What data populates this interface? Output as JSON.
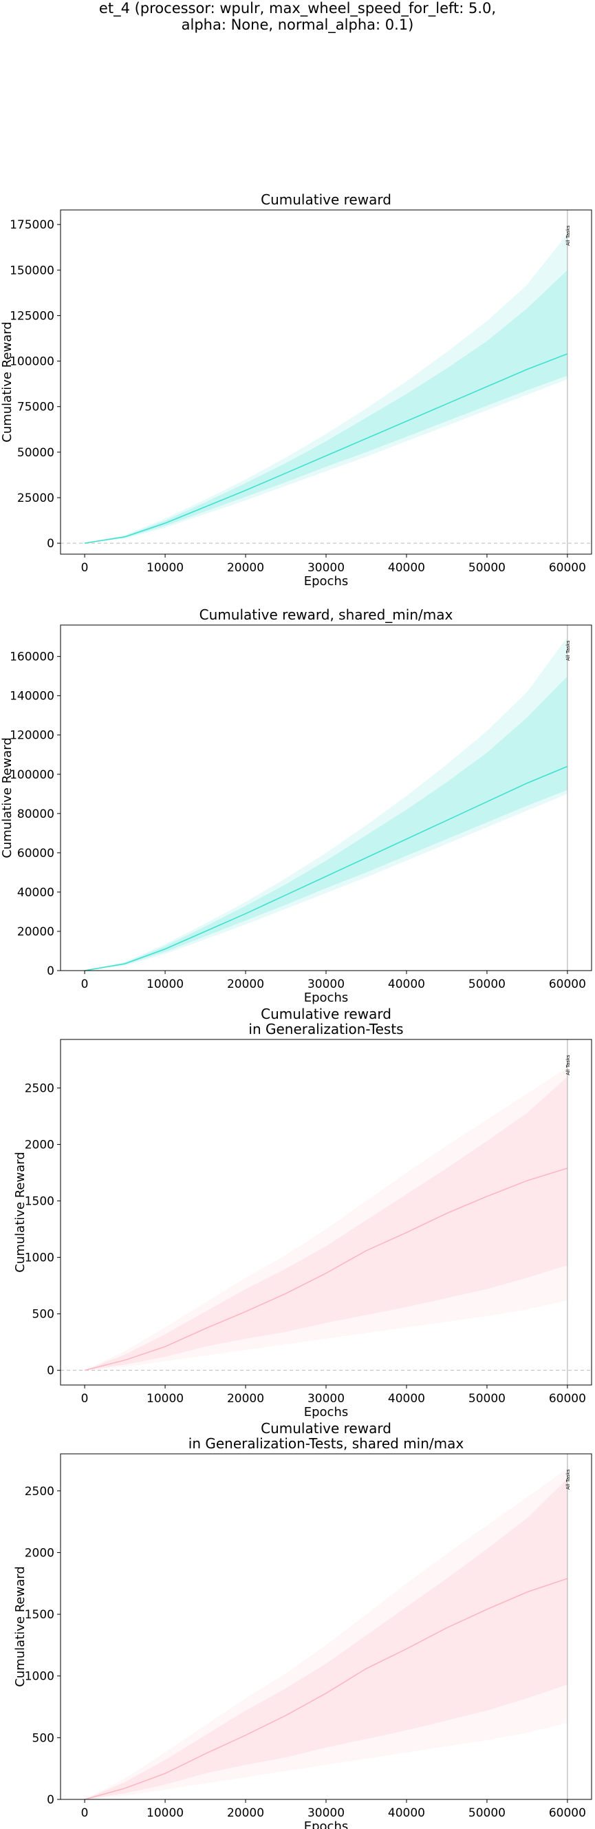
{
  "figure": {
    "suptitle_line1": "et_4 (processor: wpulr, max_wheel_speed_for_left: 5.0,",
    "suptitle_line2": "alpha: None, normal_alpha: 0.1)"
  },
  "chart_data": [
    {
      "type": "line",
      "title": "Cumulative reward",
      "xlabel": "Epochs",
      "ylabel": "Cumulative Reward",
      "xlim": [
        -3000,
        63000
      ],
      "ylim": [
        -6000,
        183000
      ],
      "xticks": [
        0,
        10000,
        20000,
        30000,
        40000,
        50000,
        60000
      ],
      "yticks": [
        0,
        25000,
        50000,
        75000,
        100000,
        125000,
        150000,
        175000
      ],
      "zero_line": true,
      "vline": {
        "x": 60000,
        "label": "All Tasks"
      },
      "series_color": "#40e0d0",
      "x": [
        0,
        5000,
        10000,
        15000,
        20000,
        25000,
        30000,
        35000,
        40000,
        45000,
        50000,
        55000,
        60000
      ],
      "mean": [
        0,
        3500,
        11000,
        20000,
        29000,
        38500,
        48000,
        57500,
        67000,
        76500,
        86000,
        95500,
        104000
      ],
      "inner_lower": [
        0,
        3000,
        9500,
        17500,
        25500,
        33500,
        42000,
        50000,
        58500,
        67000,
        75500,
        84000,
        92000
      ],
      "inner_upper": [
        0,
        4000,
        12500,
        22500,
        33000,
        44000,
        56000,
        69000,
        82000,
        96000,
        111000,
        129000,
        150000
      ],
      "outer_lower": [
        0,
        2500,
        8500,
        16000,
        23500,
        31500,
        39500,
        47500,
        56000,
        64500,
        73000,
        81500,
        90000
      ],
      "outer_upper": [
        0,
        4500,
        13500,
        24000,
        35000,
        47000,
        60000,
        74000,
        89000,
        105000,
        122000,
        142000,
        170000
      ]
    },
    {
      "type": "line",
      "title": "Cumulative reward, shared_min/max",
      "xlabel": "Epochs",
      "ylabel": "Cumulative Reward",
      "xlim": [
        -3000,
        63000
      ],
      "ylim": [
        0,
        176000
      ],
      "xticks": [
        0,
        10000,
        20000,
        30000,
        40000,
        50000,
        60000
      ],
      "yticks": [
        0,
        20000,
        40000,
        60000,
        80000,
        100000,
        120000,
        140000,
        160000
      ],
      "zero_line": false,
      "vline": {
        "x": 60000,
        "label": "All Tasks"
      },
      "series_color": "#40e0d0",
      "x": [
        0,
        5000,
        10000,
        15000,
        20000,
        25000,
        30000,
        35000,
        40000,
        45000,
        50000,
        55000,
        60000
      ],
      "mean": [
        0,
        3500,
        11000,
        20000,
        29000,
        38500,
        48000,
        57500,
        67000,
        76500,
        86000,
        95500,
        104000
      ],
      "inner_lower": [
        0,
        3000,
        9500,
        17500,
        25500,
        33500,
        42000,
        50000,
        58500,
        67000,
        75500,
        84000,
        92000
      ],
      "inner_upper": [
        0,
        4000,
        12500,
        22500,
        33000,
        44000,
        56000,
        69000,
        82000,
        96000,
        111000,
        129000,
        150000
      ],
      "outer_lower": [
        0,
        2500,
        8500,
        16000,
        23500,
        31500,
        39500,
        47500,
        56000,
        64500,
        73000,
        81500,
        90000
      ],
      "outer_upper": [
        0,
        4500,
        13500,
        24000,
        35000,
        47000,
        60000,
        74000,
        89000,
        105000,
        122000,
        142000,
        170000
      ]
    },
    {
      "type": "line",
      "title": "Cumulative reward\nin Generalization-Tests",
      "xlabel": "Epochs",
      "ylabel": "Cumulative Reward",
      "xlim": [
        -3000,
        63000
      ],
      "ylim": [
        -130,
        2930
      ],
      "xticks": [
        0,
        10000,
        20000,
        30000,
        40000,
        50000,
        60000
      ],
      "yticks": [
        0,
        500,
        1000,
        1500,
        2000,
        2500
      ],
      "zero_line": true,
      "vline": {
        "x": 60000,
        "label": "All Tasks"
      },
      "series_color": "#ffb6c1",
      "x": [
        0,
        5000,
        10000,
        15000,
        20000,
        25000,
        30000,
        35000,
        40000,
        45000,
        50000,
        55000,
        60000
      ],
      "mean": [
        0,
        90,
        210,
        370,
        520,
        680,
        860,
        1060,
        1220,
        1390,
        1540,
        1680,
        1790
      ],
      "inner_lower": [
        0,
        50,
        120,
        210,
        280,
        340,
        420,
        490,
        560,
        640,
        720,
        820,
        930
      ],
      "inner_upper": [
        0,
        140,
        320,
        520,
        720,
        900,
        1100,
        1330,
        1560,
        1790,
        2030,
        2280,
        2600
      ],
      "outer_lower": [
        0,
        30,
        80,
        130,
        180,
        230,
        280,
        330,
        380,
        430,
        480,
        540,
        620
      ],
      "outer_upper": [
        0,
        170,
        380,
        600,
        820,
        1020,
        1250,
        1500,
        1750,
        1990,
        2220,
        2450,
        2680
      ]
    },
    {
      "type": "line",
      "title": "Cumulative reward\nin Generalization-Tests, shared min/max",
      "xlabel": "Epochs",
      "ylabel": "Cumulative Reward",
      "xlim": [
        -3000,
        63000
      ],
      "ylim": [
        0,
        2800
      ],
      "xticks": [
        0,
        10000,
        20000,
        30000,
        40000,
        50000,
        60000
      ],
      "yticks": [
        0,
        500,
        1000,
        1500,
        2000,
        2500
      ],
      "zero_line": false,
      "vline": {
        "x": 60000,
        "label": "All Tasks"
      },
      "series_color": "#ffb6c1",
      "x": [
        0,
        5000,
        10000,
        15000,
        20000,
        25000,
        30000,
        35000,
        40000,
        45000,
        50000,
        55000,
        60000
      ],
      "mean": [
        0,
        90,
        210,
        370,
        520,
        680,
        860,
        1060,
        1220,
        1390,
        1540,
        1680,
        1790
      ],
      "inner_lower": [
        0,
        50,
        120,
        210,
        280,
        340,
        420,
        490,
        560,
        640,
        720,
        820,
        930
      ],
      "inner_upper": [
        0,
        140,
        320,
        520,
        720,
        900,
        1100,
        1330,
        1560,
        1790,
        2030,
        2280,
        2600
      ],
      "outer_lower": [
        0,
        30,
        80,
        130,
        180,
        230,
        280,
        330,
        380,
        430,
        480,
        540,
        620
      ],
      "outer_upper": [
        0,
        170,
        380,
        600,
        820,
        1020,
        1250,
        1500,
        1750,
        1990,
        2220,
        2450,
        2680
      ]
    }
  ]
}
